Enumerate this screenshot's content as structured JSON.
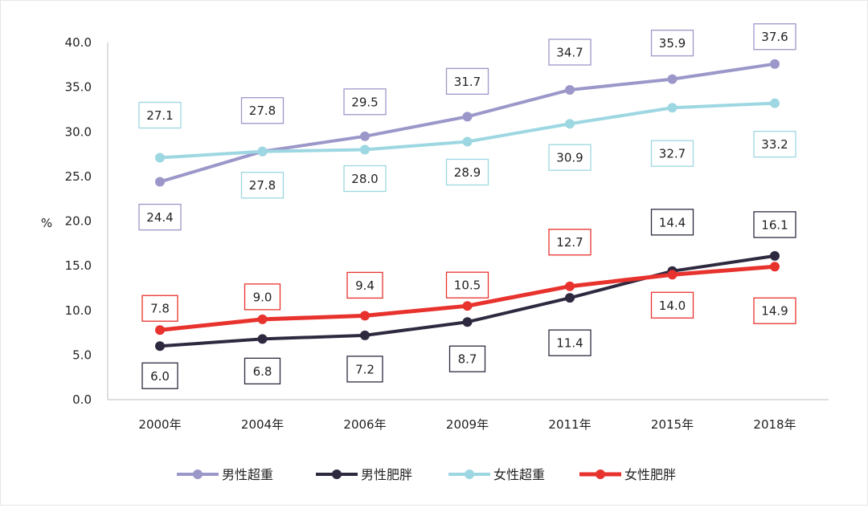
{
  "chart_data": {
    "type": "line",
    "title": "",
    "xlabel": "",
    "ylabel": "%",
    "ylim": [
      0,
      40
    ],
    "ytick_step": 5,
    "ytick_labels": [
      "0.0",
      "5.0",
      "10.0",
      "15.0",
      "20.0",
      "25.0",
      "30.0",
      "35.0",
      "40.0"
    ],
    "grid": false,
    "legend_position": "bottom",
    "categories": [
      "2000年",
      "2004年",
      "2006年",
      "2009年",
      "2011年",
      "2015年",
      "2018年"
    ],
    "series": [
      {
        "name": "男性超重",
        "color": "#9b97c9",
        "values": [
          24.4,
          27.8,
          29.5,
          31.7,
          34.7,
          35.9,
          37.6
        ],
        "value_labels": [
          "24.4",
          "27.8",
          "29.5",
          "31.7",
          "34.7",
          "35.9",
          "37.6"
        ]
      },
      {
        "name": "男性肥胖",
        "color": "#2f2940",
        "values": [
          6.0,
          6.8,
          7.2,
          8.7,
          11.4,
          14.4,
          16.1
        ],
        "value_labels": [
          "6.0",
          "6.8",
          "7.2",
          "8.7",
          "11.4",
          "14.4",
          "16.1"
        ]
      },
      {
        "name": "女性超重",
        "color": "#9dd7e2",
        "values": [
          27.1,
          27.8,
          28.0,
          28.9,
          30.9,
          32.7,
          33.2
        ],
        "value_labels": [
          "27.1",
          "27.8",
          "28.0",
          "28.9",
          "30.9",
          "32.7",
          "33.2"
        ]
      },
      {
        "name": "女性肥胖",
        "color": "#e8322d",
        "values": [
          7.8,
          9.0,
          9.4,
          10.5,
          12.7,
          14.0,
          14.9
        ],
        "value_labels": [
          "7.8",
          "9.0",
          "9.4",
          "10.5",
          "12.7",
          "14.0",
          "14.9"
        ]
      }
    ]
  }
}
